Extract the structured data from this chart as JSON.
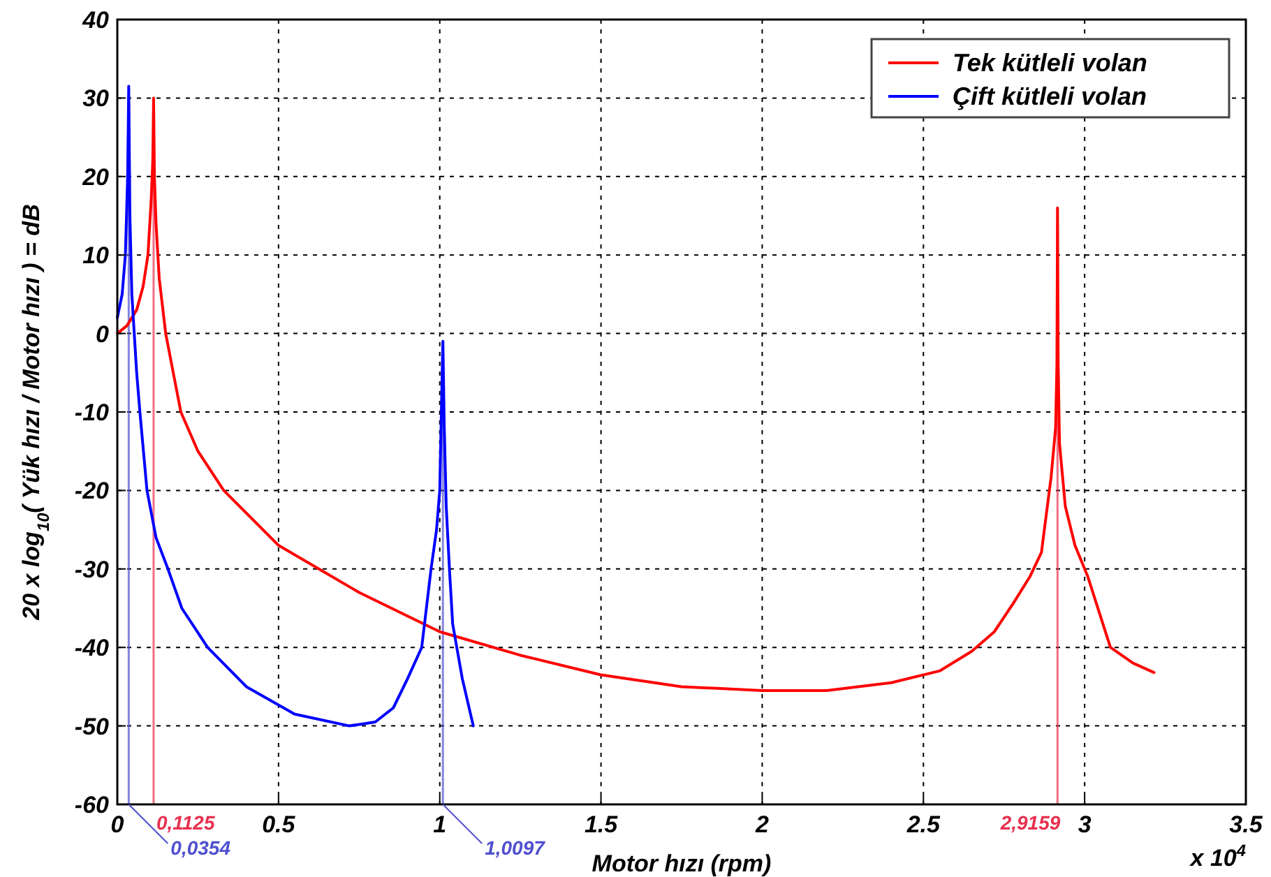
{
  "chart_data": {
    "type": "line",
    "xlabel": "Motor hızı (rpm)",
    "ylabel": "20 x log$_{10}$( Yük hızı / Motor hızı ) = dB",
    "annotations": [
      "x 10$^{4}$"
    ],
    "xlim": [
      0,
      3.5
    ],
    "xticks": [
      0,
      0.5,
      1,
      1.5,
      2,
      2.5,
      3,
      3.5
    ],
    "ylim": [
      -60,
      40
    ],
    "yticks": [
      -60,
      -50,
      -40,
      -30,
      -20,
      -10,
      0,
      10,
      20,
      30,
      40
    ],
    "grid": true,
    "legend": "top right",
    "line_style": "solid",
    "marker": "none",
    "series": [
      {
        "name": "Tek kütleli volan",
        "color": "#ff0000",
        "x": [
          0,
          0.03,
          0.06,
          0.08,
          0.095,
          0.105,
          0.11,
          0.1125,
          0.115,
          0.12,
          0.13,
          0.15,
          0.197,
          0.25,
          0.33,
          0.5,
          0.75,
          1.0,
          1.25,
          1.5,
          1.75,
          2.0,
          2.2,
          2.4,
          2.55,
          2.65,
          2.72,
          2.78,
          2.83,
          2.866,
          2.896,
          2.91,
          2.914,
          2.9159,
          2.918,
          2.922,
          2.94,
          2.97,
          3.01,
          3.08,
          3.15,
          3.215
        ],
        "values": [
          0,
          1,
          3,
          6,
          10,
          17,
          22,
          30,
          20,
          14,
          7,
          0,
          -10,
          -15,
          -20,
          -27,
          -33,
          -38,
          -41,
          -43.5,
          -45,
          -45.5,
          -45.5,
          -44.5,
          -43,
          -40.5,
          -38,
          -34.3,
          -31,
          -27.9,
          -18.3,
          -12,
          -4,
          16,
          -4,
          -14,
          -22,
          -27,
          -31,
          -40,
          -42,
          -43.2
        ]
      },
      {
        "name": "Çift kütleli volan",
        "color": "#0000ff",
        "x": [
          0,
          0.015,
          0.025,
          0.032,
          0.0354,
          0.039,
          0.045,
          0.06,
          0.07,
          0.092,
          0.12,
          0.157,
          0.2,
          0.28,
          0.4,
          0.55,
          0.72,
          0.8,
          0.856,
          0.9,
          0.944,
          0.973,
          0.99,
          1.0,
          1.005,
          1.0097,
          1.014,
          1.02,
          1.03,
          1.04,
          1.07,
          1.104
        ],
        "values": [
          2,
          5,
          10,
          20,
          31.5,
          15,
          5,
          -5,
          -10,
          -20,
          -26,
          -30,
          -35,
          -40,
          -45,
          -48.5,
          -50,
          -49.5,
          -47.7,
          -44,
          -40,
          -30,
          -25,
          -20,
          -10,
          -1,
          -12,
          -22,
          -30,
          -37,
          -44,
          -50
        ]
      }
    ],
    "ref_lines": [
      {
        "axis": "x",
        "value": 0.1125,
        "label": "0,1125",
        "color": "#e83050"
      },
      {
        "axis": "x",
        "value": 0.0354,
        "label": "0,0354",
        "color": "#5050d0"
      },
      {
        "axis": "x",
        "value": 1.0097,
        "label": "1,0097",
        "color": "#5050d0"
      },
      {
        "axis": "x",
        "value": 2.9159,
        "label": "2,9159",
        "color": "#e83050"
      }
    ]
  }
}
